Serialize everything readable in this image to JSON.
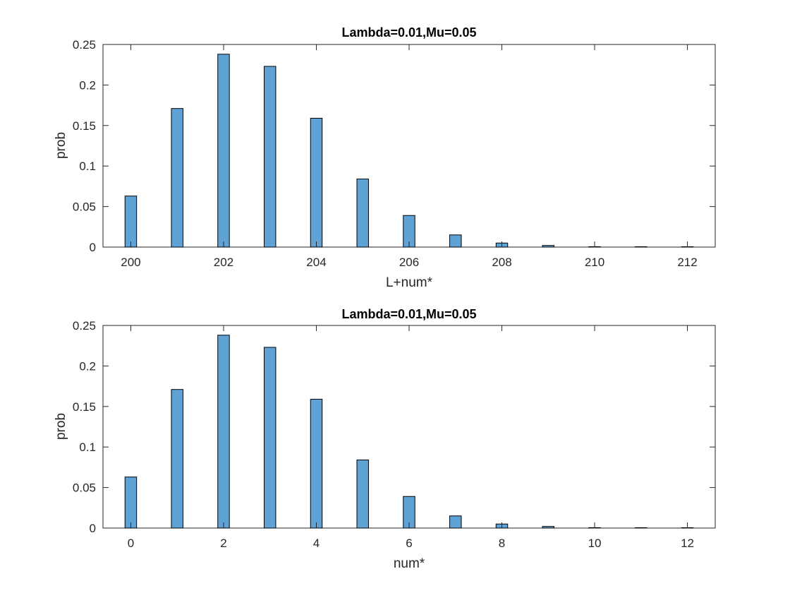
{
  "chart_data": [
    {
      "type": "bar",
      "title": "Lambda=0.01,Mu=0.05",
      "xlabel": "L+num*",
      "ylabel": "prob",
      "x": [
        200,
        201,
        202,
        203,
        204,
        205,
        206,
        207,
        208,
        209,
        210,
        211,
        212
      ],
      "values": [
        0.063,
        0.171,
        0.238,
        0.223,
        0.159,
        0.084,
        0.039,
        0.015,
        0.005,
        0.002,
        0.0005,
        0.0001,
        0.0
      ],
      "xlim": [
        199.4,
        212.6
      ],
      "ylim": [
        0,
        0.25
      ],
      "xticks": [
        "200",
        "202",
        "204",
        "206",
        "208",
        "210",
        "212"
      ],
      "yticks": [
        "0",
        "0.05",
        "0.1",
        "0.15",
        "0.2",
        "0.25"
      ],
      "bar_color": "#5fa2d6",
      "grid": false
    },
    {
      "type": "bar",
      "title": "Lambda=0.01,Mu=0.05",
      "xlabel": "num*",
      "ylabel": "prob",
      "x": [
        0,
        1,
        2,
        3,
        4,
        5,
        6,
        7,
        8,
        9,
        10,
        11,
        12
      ],
      "values": [
        0.063,
        0.171,
        0.238,
        0.223,
        0.159,
        0.084,
        0.039,
        0.015,
        0.005,
        0.002,
        0.0005,
        0.0001,
        0.0
      ],
      "xlim": [
        -0.6,
        12.6
      ],
      "ylim": [
        0,
        0.25
      ],
      "xticks": [
        "0",
        "2",
        "4",
        "6",
        "8",
        "10",
        "12"
      ],
      "yticks": [
        "0",
        "0.05",
        "0.1",
        "0.15",
        "0.2",
        "0.25"
      ],
      "bar_color": "#5fa2d6",
      "grid": false
    }
  ]
}
